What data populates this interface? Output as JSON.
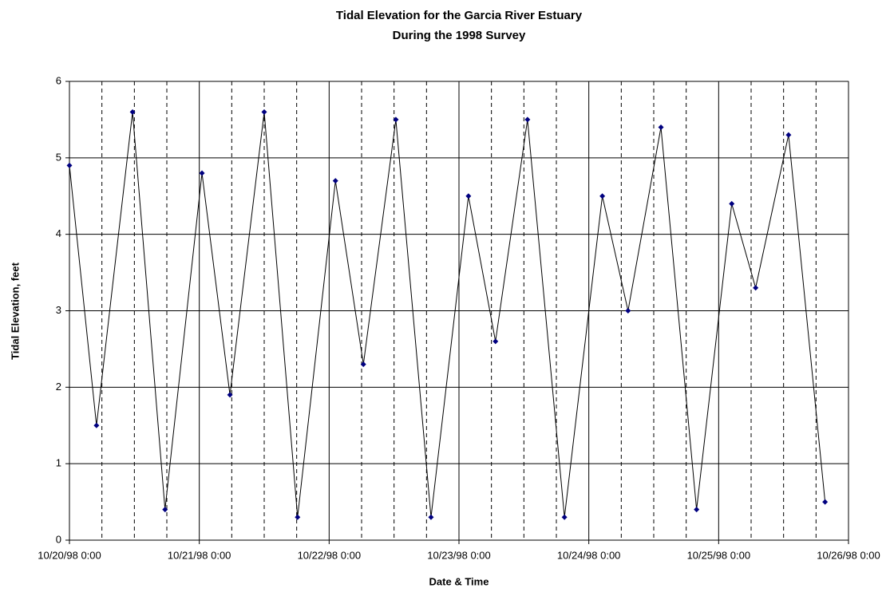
{
  "chart_data": {
    "type": "line",
    "title": "Tidal Elevation for the Garcia River Estuary",
    "subtitle": "During the 1998 Survey",
    "x_label": "Date & Time",
    "y_label": "Tidal Elevation, feet",
    "x": [
      "1998-10-20T00:00",
      "1998-10-20T05:00",
      "1998-10-20T11:40",
      "1998-10-20T17:40",
      "1998-10-21T00:30",
      "1998-10-21T05:40",
      "1998-10-21T12:00",
      "1998-10-21T18:10",
      "1998-10-22T01:10",
      "1998-10-22T06:20",
      "1998-10-22T12:20",
      "1998-10-22T18:50",
      "1998-10-23T01:45",
      "1998-10-23T06:45",
      "1998-10-23T12:40",
      "1998-10-23T19:30",
      "1998-10-24T02:30",
      "1998-10-24T07:15",
      "1998-10-24T13:20",
      "1998-10-24T19:55",
      "1998-10-25T02:25",
      "1998-10-25T06:50",
      "1998-10-25T12:55",
      "1998-10-25T19:40"
    ],
    "values": [
      4.9,
      1.5,
      5.6,
      0.4,
      4.8,
      1.9,
      5.6,
      0.3,
      4.7,
      2.3,
      5.5,
      0.3,
      4.5,
      2.6,
      5.5,
      0.3,
      4.5,
      3.0,
      5.4,
      0.4,
      4.4,
      3.3,
      5.3,
      0.5
    ],
    "line_color": "#000000",
    "marker_color": "#000080",
    "xlim": [
      "1998-10-20T00:00",
      "1998-10-26T00:00"
    ],
    "xticks": [
      {
        "value": "1998-10-20T00:00",
        "label": "10/20/98 0:00"
      },
      {
        "value": "1998-10-21T00:00",
        "label": "10/21/98 0:00"
      },
      {
        "value": "1998-10-22T00:00",
        "label": "10/22/98 0:00"
      },
      {
        "value": "1998-10-23T00:00",
        "label": "10/23/98 0:00"
      },
      {
        "value": "1998-10-24T00:00",
        "label": "10/24/98 0:00"
      },
      {
        "value": "1998-10-25T00:00",
        "label": "10/25/98 0:00"
      },
      {
        "value": "1998-10-26T00:00",
        "label": "10/26/98 0:00"
      }
    ],
    "xminorticks": [
      "1998-10-20T06:00",
      "1998-10-20T12:00",
      "1998-10-20T18:00",
      "1998-10-21T06:00",
      "1998-10-21T12:00",
      "1998-10-21T18:00",
      "1998-10-22T06:00",
      "1998-10-22T12:00",
      "1998-10-22T18:00",
      "1998-10-23T06:00",
      "1998-10-23T12:00",
      "1998-10-23T18:00",
      "1998-10-24T06:00",
      "1998-10-24T12:00",
      "1998-10-24T18:00",
      "1998-10-25T06:00",
      "1998-10-25T12:00",
      "1998-10-25T18:00"
    ],
    "ylim": [
      0,
      6
    ],
    "yticks": [
      0,
      1,
      2,
      3,
      4,
      5,
      6
    ],
    "grid": true
  }
}
